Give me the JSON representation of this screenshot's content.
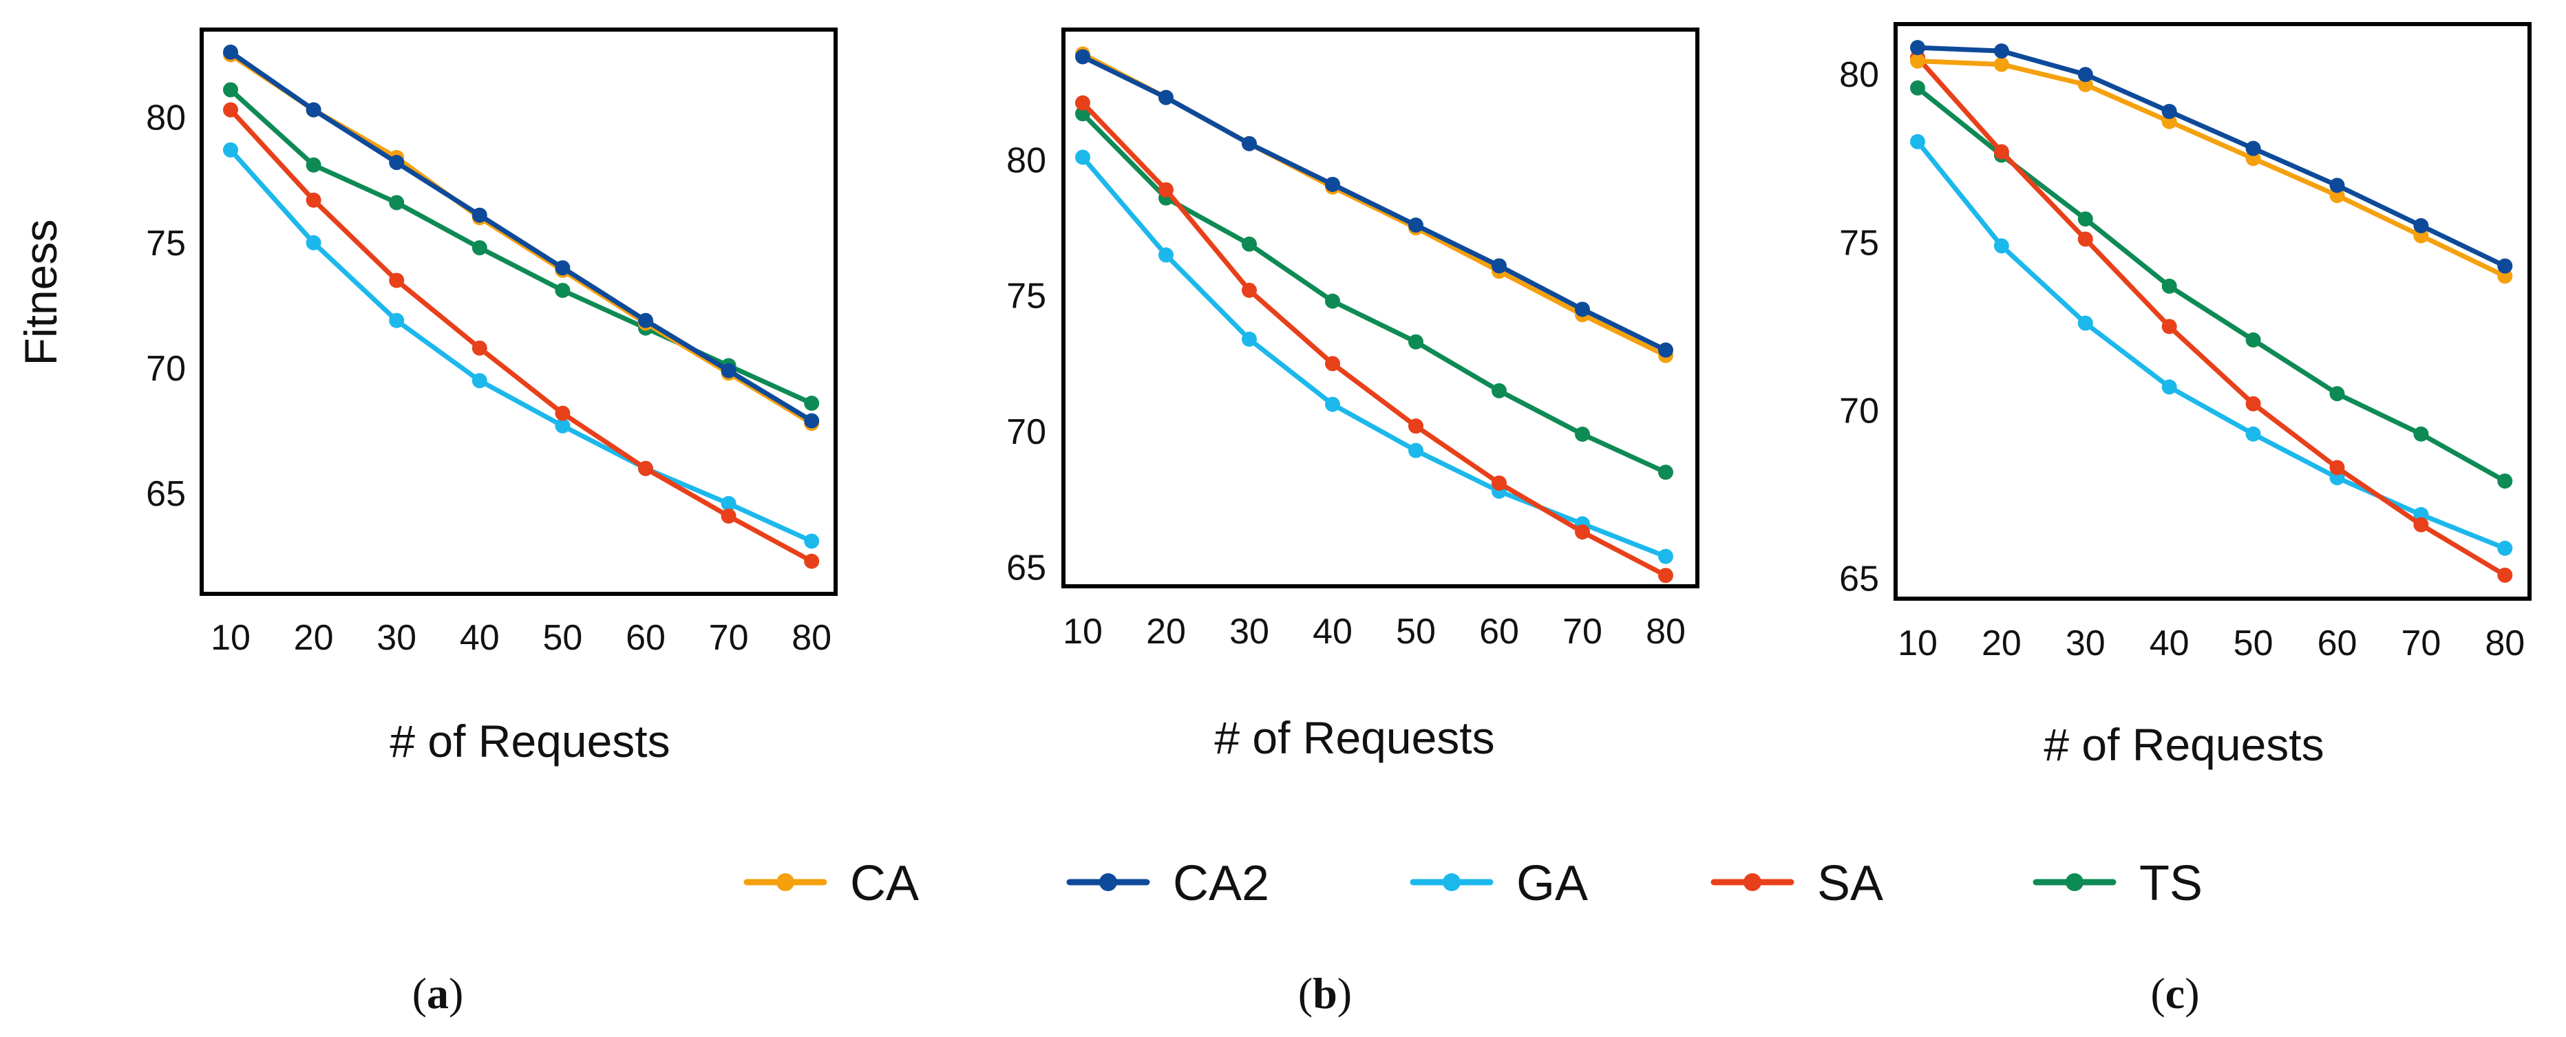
{
  "figure": {
    "ylabel": "Fitness",
    "xlabel": "# of Requests"
  },
  "colors": {
    "CA": "#F5A00D",
    "CA2": "#0E4A9A",
    "GA": "#1CB8EC",
    "SA": "#E8401A",
    "TS": "#0E8A55"
  },
  "legend": [
    "CA",
    "CA2",
    "GA",
    "SA",
    "TS"
  ],
  "panel_labels": [
    {
      "open": "(",
      "letter": "a",
      "close": ")"
    },
    {
      "open": "(",
      "letter": "b",
      "close": ")"
    },
    {
      "open": "(",
      "letter": "c",
      "close": ")"
    }
  ],
  "chart_data": [
    {
      "type": "line",
      "title": "",
      "xlabel": "# of Requests",
      "ylabel": "Fitness",
      "x": [
        10,
        20,
        30,
        40,
        50,
        60,
        70,
        80
      ],
      "ylim": [
        61,
        83.5
      ],
      "yticks": [
        65,
        70,
        75,
        80
      ],
      "series": [
        {
          "name": "CA",
          "values": [
            82.5,
            80.3,
            78.4,
            76.0,
            73.9,
            71.8,
            69.8,
            67.8
          ]
        },
        {
          "name": "CA2",
          "values": [
            82.6,
            80.3,
            78.2,
            76.1,
            74.0,
            71.9,
            69.9,
            67.9
          ]
        },
        {
          "name": "GA",
          "values": [
            78.7,
            75.0,
            71.9,
            69.5,
            67.7,
            66.0,
            64.6,
            63.1
          ]
        },
        {
          "name": "SA",
          "values": [
            80.3,
            76.7,
            73.5,
            70.8,
            68.2,
            66.0,
            64.1,
            62.3
          ]
        },
        {
          "name": "TS",
          "values": [
            81.1,
            78.1,
            76.6,
            74.8,
            73.1,
            71.6,
            70.1,
            68.6
          ]
        }
      ]
    },
    {
      "type": "line",
      "title": "",
      "xlabel": "# of Requests",
      "ylabel": "",
      "x": [
        10,
        20,
        30,
        40,
        50,
        60,
        70,
        80
      ],
      "ylim": [
        64.3,
        84.8
      ],
      "yticks": [
        65,
        70,
        75,
        80
      ],
      "series": [
        {
          "name": "CA",
          "values": [
            83.9,
            82.3,
            80.6,
            79.0,
            77.5,
            75.9,
            74.3,
            72.8
          ]
        },
        {
          "name": "CA2",
          "values": [
            83.8,
            82.3,
            80.6,
            79.1,
            77.6,
            76.1,
            74.5,
            73.0
          ]
        },
        {
          "name": "GA",
          "values": [
            80.1,
            76.5,
            73.4,
            71.0,
            69.3,
            67.8,
            66.6,
            65.4
          ]
        },
        {
          "name": "SA",
          "values": [
            82.1,
            78.9,
            75.2,
            72.5,
            70.2,
            68.1,
            66.3,
            64.7
          ]
        },
        {
          "name": "TS",
          "values": [
            81.7,
            78.6,
            76.9,
            74.8,
            73.3,
            71.5,
            69.9,
            68.5
          ]
        }
      ]
    },
    {
      "type": "line",
      "title": "",
      "xlabel": "# of Requests",
      "ylabel": "",
      "x": [
        10,
        20,
        30,
        40,
        50,
        60,
        70,
        80
      ],
      "ylim": [
        64.4,
        81.5
      ],
      "yticks": [
        65,
        70,
        75,
        80
      ],
      "series": [
        {
          "name": "CA",
          "values": [
            80.4,
            80.3,
            79.7,
            78.6,
            77.5,
            76.4,
            75.2,
            74.0
          ]
        },
        {
          "name": "CA2",
          "values": [
            80.8,
            80.7,
            80.0,
            78.9,
            77.8,
            76.7,
            75.5,
            74.3
          ]
        },
        {
          "name": "GA",
          "values": [
            78.0,
            74.9,
            72.6,
            70.7,
            69.3,
            68.0,
            66.9,
            65.9
          ]
        },
        {
          "name": "SA",
          "values": [
            80.5,
            77.7,
            75.1,
            72.5,
            70.2,
            68.3,
            66.6,
            65.1
          ]
        },
        {
          "name": "TS",
          "values": [
            79.6,
            77.6,
            75.7,
            73.7,
            72.1,
            70.5,
            69.3,
            67.9
          ]
        }
      ]
    }
  ]
}
